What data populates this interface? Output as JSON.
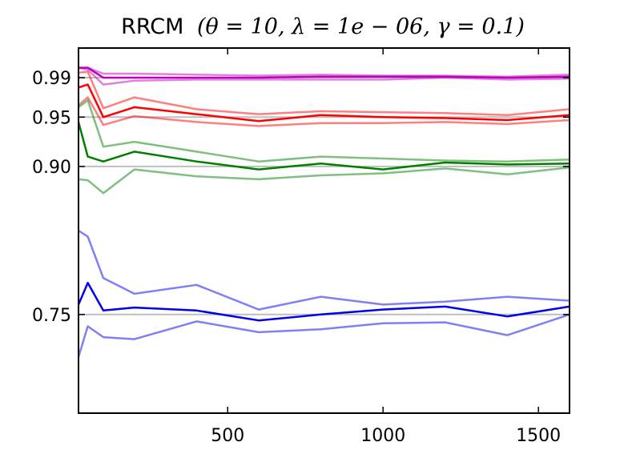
{
  "chart_data": {
    "type": "line",
    "title": "RRCM",
    "title_params": "(θ = 10, λ = 1e − 06, γ = 0.1)",
    "xlabel": "",
    "ylabel": "",
    "xlim": [
      20,
      1600
    ],
    "ylim": [
      0.65,
      1.02
    ],
    "x_ticks": [
      500,
      1000,
      1500
    ],
    "x_tick_labels": [
      "500",
      "1000",
      "1500"
    ],
    "y_ticks": [
      0.75,
      0.9,
      0.95,
      0.99
    ],
    "y_tick_labels": [
      "0.75",
      "0.90",
      "0.95",
      "0.99"
    ],
    "grid": false,
    "reference_lines": [
      0.75,
      0.9,
      0.95,
      0.99
    ],
    "reference_color": "#bfbfbf",
    "x": [
      20,
      50,
      100,
      200,
      400,
      600,
      800,
      1000,
      1200,
      1400,
      1600
    ],
    "series": [
      {
        "role": "mean",
        "color": "#bf00bf",
        "opacity": 1.0,
        "values": [
          1.0,
          1.0,
          0.99,
          0.99,
          0.99,
          0.99,
          0.991,
          0.991,
          0.991,
          0.99,
          0.991
        ]
      },
      {
        "role": "upper",
        "color": "#bf00bf",
        "opacity": 0.5,
        "values": [
          1.0,
          1.0,
          0.994,
          0.994,
          0.993,
          0.992,
          0.993,
          0.992,
          0.992,
          0.991,
          0.993
        ]
      },
      {
        "role": "lower",
        "color": "#bf00bf",
        "opacity": 0.5,
        "values": [
          1.0,
          0.998,
          0.983,
          0.987,
          0.988,
          0.988,
          0.988,
          0.988,
          0.99,
          0.988,
          0.989
        ]
      },
      {
        "role": "mean",
        "color": "#ff0000",
        "opacity": 1.0,
        "values": [
          0.98,
          0.983,
          0.95,
          0.96,
          0.953,
          0.946,
          0.952,
          0.95,
          0.949,
          0.947,
          0.952
        ]
      },
      {
        "role": "upper",
        "color": "#ff0000",
        "opacity": 0.5,
        "values": [
          0.995,
          0.996,
          0.959,
          0.97,
          0.958,
          0.953,
          0.956,
          0.955,
          0.954,
          0.952,
          0.958
        ]
      },
      {
        "role": "lower",
        "color": "#ff0000",
        "opacity": 0.5,
        "values": [
          0.962,
          0.97,
          0.942,
          0.951,
          0.945,
          0.941,
          0.944,
          0.944,
          0.945,
          0.943,
          0.947
        ]
      },
      {
        "role": "mean",
        "color": "#008000",
        "opacity": 1.0,
        "values": [
          0.945,
          0.91,
          0.905,
          0.915,
          0.905,
          0.897,
          0.903,
          0.897,
          0.904,
          0.902,
          0.903
        ]
      },
      {
        "role": "upper",
        "color": "#008000",
        "opacity": 0.5,
        "values": [
          0.96,
          0.967,
          0.92,
          0.925,
          0.915,
          0.905,
          0.91,
          0.908,
          0.906,
          0.905,
          0.907
        ]
      },
      {
        "role": "lower",
        "color": "#008000",
        "opacity": 0.5,
        "values": [
          0.887,
          0.886,
          0.873,
          0.897,
          0.89,
          0.887,
          0.891,
          0.893,
          0.898,
          0.892,
          0.899
        ]
      },
      {
        "role": "mean",
        "color": "#0000ee",
        "opacity": 1.0,
        "values": [
          0.76,
          0.782,
          0.754,
          0.757,
          0.754,
          0.744,
          0.75,
          0.755,
          0.758,
          0.748,
          0.758
        ]
      },
      {
        "role": "upper",
        "color": "#0000ee",
        "opacity": 0.5,
        "values": [
          0.835,
          0.829,
          0.787,
          0.771,
          0.78,
          0.755,
          0.768,
          0.76,
          0.763,
          0.768,
          0.764
        ]
      },
      {
        "role": "lower",
        "color": "#0000ee",
        "opacity": 0.5,
        "values": [
          0.707,
          0.738,
          0.727,
          0.725,
          0.743,
          0.732,
          0.735,
          0.741,
          0.742,
          0.729,
          0.75
        ]
      }
    ]
  }
}
